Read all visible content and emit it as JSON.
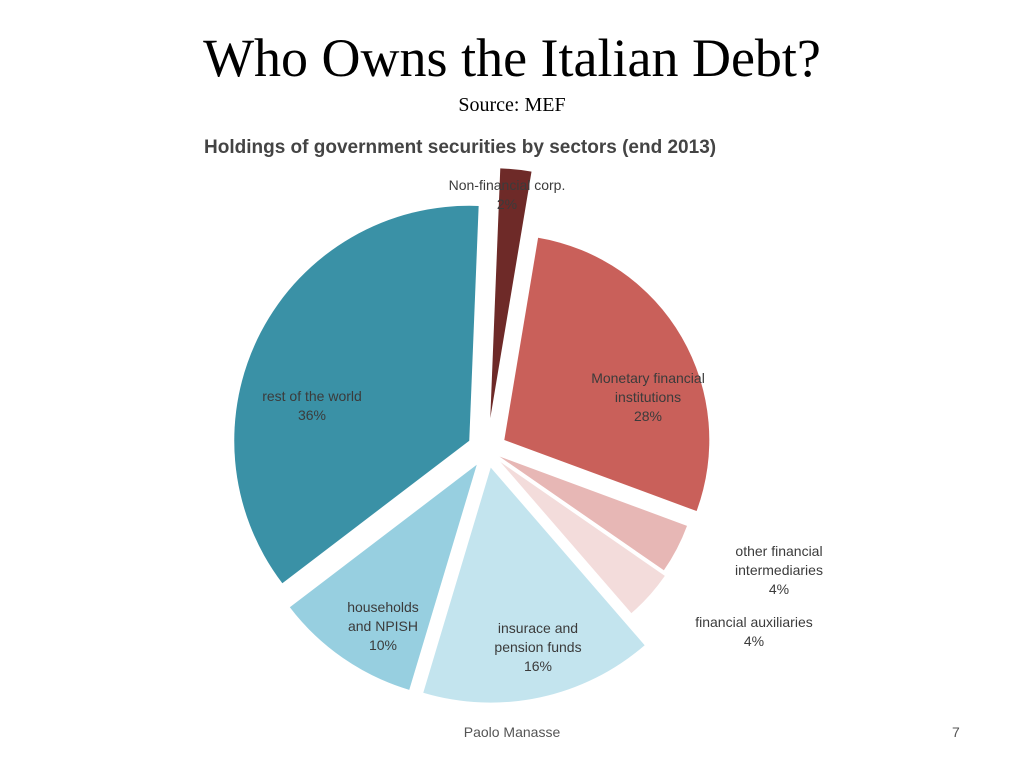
{
  "slide": {
    "title": "Who Owns the Italian Debt?",
    "subtitle": "Source: MEF",
    "author": "Paolo Manasse",
    "page_number": "7"
  },
  "chart_data": {
    "type": "pie",
    "title": "Holdings of government securities by sectors (end 2013)",
    "unit": "%",
    "slices": [
      {
        "name": "Non-financial corp.",
        "value": 2,
        "label": "2%",
        "color": "#6e2a28"
      },
      {
        "name": "Monetary financial institutions",
        "value": 28,
        "label": "28%",
        "color": "#c9605a"
      },
      {
        "name": "other financial intermediaries",
        "value": 4,
        "label": "4%",
        "color": "#e7b7b5"
      },
      {
        "name": "financial auxiliaries",
        "value": 4,
        "label": "4%",
        "color": "#f3dcdb"
      },
      {
        "name": "insurace and pension funds",
        "value": 16,
        "label": "16%",
        "color": "#c3e4ee"
      },
      {
        "name": "households and NPISH",
        "value": 10,
        "label": "10%",
        "color": "#97cfe0"
      },
      {
        "name": "rest of the world",
        "value": 36,
        "label": "36%",
        "color": "#3a91a6"
      }
    ]
  }
}
